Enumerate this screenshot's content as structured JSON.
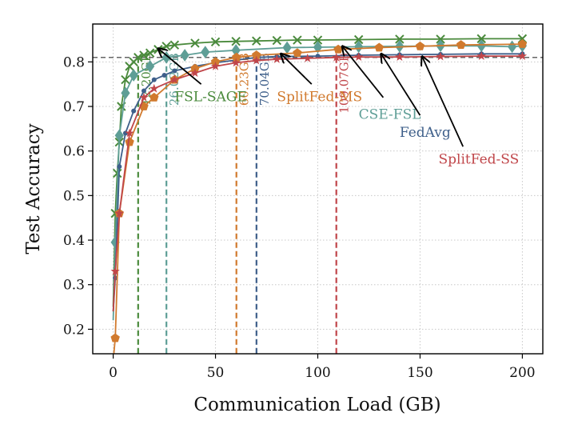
{
  "chart_data": {
    "type": "line",
    "xlabel": "Communication Load (GB)",
    "ylabel": "Test Accuracy",
    "xlim": [
      -10,
      210
    ],
    "ylim": [
      0.145,
      0.885
    ],
    "xticks": [
      0,
      50,
      100,
      150,
      200
    ],
    "yticks": [
      0.2,
      0.3,
      0.4,
      0.5,
      0.6,
      0.7,
      0.8
    ],
    "xtick_labels": [
      "0",
      "50",
      "100",
      "150",
      "200"
    ],
    "ytick_labels": [
      "0.2",
      "0.3",
      "0.4",
      "0.5",
      "0.6",
      "0.7",
      "0.8"
    ],
    "grid": true,
    "target_accuracy": 0.81,
    "series": [
      {
        "name": "FSL-SAGE",
        "color": "#4a8a3c",
        "marker": "x",
        "x": [
          0,
          1,
          2,
          3,
          4,
          6,
          8,
          10,
          12.2,
          15,
          18,
          22,
          26,
          30,
          40,
          50,
          60,
          70,
          80,
          90,
          100,
          120,
          140,
          160,
          180,
          200
        ],
        "y": [
          0.25,
          0.46,
          0.55,
          0.62,
          0.7,
          0.76,
          0.79,
          0.8,
          0.81,
          0.815,
          0.82,
          0.828,
          0.835,
          0.838,
          0.842,
          0.845,
          0.846,
          0.847,
          0.848,
          0.849,
          0.849,
          0.85,
          0.851,
          0.851,
          0.852,
          0.852
        ]
      },
      {
        "name": "CSE-FSL",
        "color": "#5e9e96",
        "marker": "diamond",
        "x": [
          0,
          1,
          3,
          6,
          10,
          18,
          26.02,
          35,
          45,
          60,
          85,
          100,
          120,
          140,
          160,
          180,
          195,
          200
        ],
        "y": [
          0.22,
          0.395,
          0.635,
          0.73,
          0.77,
          0.79,
          0.81,
          0.815,
          0.822,
          0.826,
          0.832,
          0.833,
          0.834,
          0.835,
          0.836,
          0.836,
          0.834,
          0.836
        ]
      },
      {
        "name": "FedAvg",
        "color": "#3e5f8a",
        "marker": "dot",
        "x": [
          0,
          1,
          3,
          6,
          10,
          15,
          20,
          25,
          30,
          40,
          50,
          60,
          70.04,
          80,
          100,
          120,
          140,
          160,
          180,
          200
        ],
        "y": [
          0.24,
          0.315,
          0.565,
          0.64,
          0.69,
          0.735,
          0.76,
          0.77,
          0.78,
          0.79,
          0.798,
          0.804,
          0.81,
          0.812,
          0.813,
          0.815,
          0.816,
          0.817,
          0.818,
          0.818
        ]
      },
      {
        "name": "SplitFed-MS",
        "color": "#d17a2e",
        "marker": "pentagon",
        "x": [
          0,
          1,
          3,
          8,
          15,
          20,
          30,
          40,
          50,
          60.23,
          70,
          90,
          110,
          130,
          150,
          170,
          200
        ],
        "y": [
          0.13,
          0.18,
          0.46,
          0.62,
          0.7,
          0.72,
          0.76,
          0.785,
          0.8,
          0.81,
          0.815,
          0.82,
          0.828,
          0.832,
          0.835,
          0.838,
          0.84
        ]
      },
      {
        "name": "SplitFed-SS",
        "color": "#c0464a",
        "marker": "star",
        "x": [
          0,
          1,
          3,
          8,
          15,
          20,
          30,
          40,
          50,
          60,
          70,
          80,
          95,
          109.07,
          120,
          140,
          160,
          180,
          200
        ],
        "y": [
          0.24,
          0.33,
          0.46,
          0.64,
          0.72,
          0.74,
          0.76,
          0.775,
          0.79,
          0.798,
          0.803,
          0.806,
          0.808,
          0.81,
          0.811,
          0.811,
          0.812,
          0.813,
          0.813
        ]
      }
    ],
    "vlines": [
      {
        "x": 12.2,
        "label": "12.20GB",
        "color": "#4a8a3c"
      },
      {
        "x": 26.02,
        "label": "26.02GB",
        "color": "#5e9e96"
      },
      {
        "x": 60.23,
        "label": "60.23GB",
        "color": "#d17a2e"
      },
      {
        "x": 70.04,
        "label": "70.04GB",
        "color": "#3e5f8a"
      },
      {
        "x": 109.07,
        "label": "109.07GB",
        "color": "#c0464a"
      }
    ],
    "annotations": [
      {
        "text": "FSL-SAGE",
        "color": "#4a8a3c",
        "text_x": 30,
        "text_y": 0.712,
        "arrow_from": [
          43,
          0.75
        ],
        "arrow_to": [
          22,
          0.83
        ]
      },
      {
        "text": "SplitFed-MS",
        "color": "#d17a2e",
        "text_x": 80,
        "text_y": 0.712,
        "arrow_from": [
          97,
          0.75
        ],
        "arrow_to": [
          82,
          0.818
        ]
      },
      {
        "text": "CSE-FSL",
        "color": "#5e9e96",
        "text_x": 120,
        "text_y": 0.672,
        "arrow_from": [
          132,
          0.72
        ],
        "arrow_to": [
          112,
          0.835
        ]
      },
      {
        "text": "FedAvg",
        "color": "#3e5f8a",
        "text_x": 140,
        "text_y": 0.632,
        "arrow_from": [
          150,
          0.68
        ],
        "arrow_to": [
          131,
          0.818
        ]
      },
      {
        "text": "SplitFed-SS",
        "color": "#c0464a",
        "text_x": 159,
        "text_y": 0.572,
        "arrow_from": [
          171,
          0.61
        ],
        "arrow_to": [
          151,
          0.812
        ]
      }
    ]
  }
}
